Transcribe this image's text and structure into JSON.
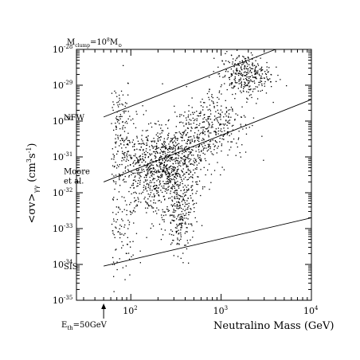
{
  "chart_data": {
    "type": "scatter",
    "title": "",
    "corner_label": {
      "base": "M",
      "sub": "clump",
      "eq": "=10",
      "sup": "8",
      "unit": "M",
      "unit_sub": "⊙"
    },
    "xlabel": "Neutralino Mass (GeV)",
    "ylabel": {
      "main": "<σv>",
      "sub": "γγ",
      "unit": "(cm",
      "unit_sup1": "3",
      "unit_mid": "s",
      "unit_sup2": "-1",
      "unit_end": ")"
    },
    "x_scale": "log",
    "y_scale": "log",
    "xlim": [
      25,
      10000
    ],
    "ylim": [
      1e-35,
      1e-28
    ],
    "x_ticks": [
      {
        "value": 100,
        "base": "10",
        "exp": "2"
      },
      {
        "value": 1000,
        "base": "10",
        "exp": "3"
      },
      {
        "value": 10000,
        "base": "10",
        "exp": "4"
      }
    ],
    "y_ticks": [
      {
        "value": 1e-28,
        "base": "10",
        "exp": "-28"
      },
      {
        "value": 1e-29,
        "base": "10",
        "exp": "-29"
      },
      {
        "value": 1e-30,
        "base": "10",
        "exp": "-30"
      },
      {
        "value": 1e-31,
        "base": "10",
        "exp": "-31"
      },
      {
        "value": 1e-32,
        "base": "10",
        "exp": "-32"
      },
      {
        "value": 1e-33,
        "base": "10",
        "exp": "-33"
      },
      {
        "value": 1e-34,
        "base": "10",
        "exp": "-34"
      },
      {
        "value": 1e-35,
        "base": "10",
        "exp": "-35"
      }
    ],
    "threshold": {
      "x": 50,
      "label_base": "E",
      "label_sub": "th",
      "label_rest": "=50GeV"
    },
    "series": [
      {
        "name": "NFW",
        "x": [
          50,
          4000
        ],
        "y": [
          1.3e-30,
          1e-28
        ]
      },
      {
        "name": "Moore et al.",
        "x": [
          50,
          10000
        ],
        "y": [
          2e-32,
          4e-30
        ]
      },
      {
        "name": "SIS",
        "x": [
          50,
          10000
        ],
        "y": [
          9e-35,
          2e-33
        ]
      }
    ],
    "scatter_clusters": [
      {
        "cx": 70,
        "cy": 5e-34,
        "sx": 0.12,
        "sy": 0.55,
        "n": 110
      },
      {
        "cx": 70,
        "cy": 1.5e-30,
        "sx": 0.08,
        "sy": 0.6,
        "n": 90
      },
      {
        "cx": 85,
        "cy": 1e-31,
        "sx": 0.14,
        "sy": 0.55,
        "n": 160
      },
      {
        "cx": 160,
        "cy": 3e-32,
        "sx": 0.18,
        "sy": 0.6,
        "n": 360
      },
      {
        "cx": 280,
        "cy": 5e-32,
        "sx": 0.16,
        "sy": 0.55,
        "n": 520
      },
      {
        "cx": 350,
        "cy": 2e-33,
        "sx": 0.08,
        "sy": 0.5,
        "n": 190
      },
      {
        "cx": 450,
        "cy": 3e-31,
        "sx": 0.2,
        "sy": 0.45,
        "n": 240
      },
      {
        "cx": 900,
        "cy": 1e-30,
        "sx": 0.18,
        "sy": 0.5,
        "n": 220
      },
      {
        "cx": 1800,
        "cy": 2e-29,
        "sx": 0.14,
        "sy": 0.3,
        "n": 320
      }
    ]
  }
}
